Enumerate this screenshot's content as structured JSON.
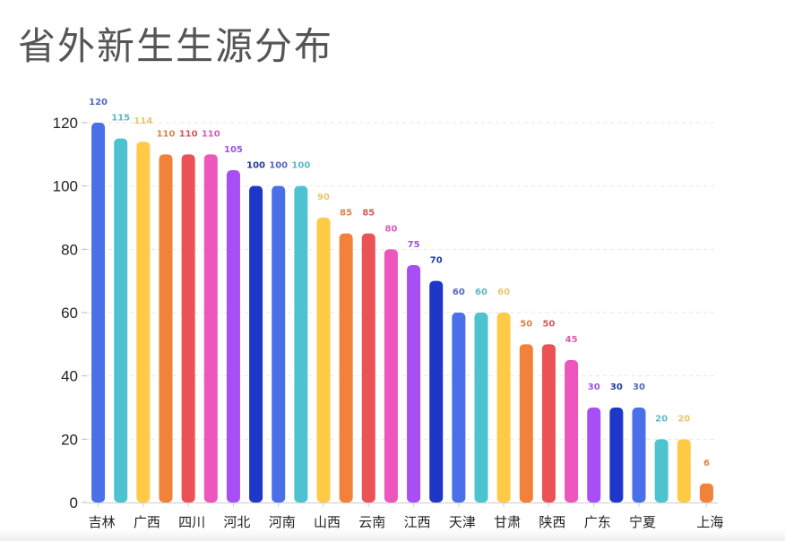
{
  "title": "省外新生生源分布",
  "chart_data": {
    "type": "bar",
    "title": "省外新生生源分布",
    "xlabel": "",
    "ylabel": "",
    "ylim": [
      0,
      120
    ],
    "yticks": [
      0,
      20,
      40,
      60,
      80,
      100,
      120
    ],
    "grid": true,
    "legend": "none",
    "categories": [
      "吉林",
      "",
      "广西",
      "",
      "四川",
      "",
      "河北",
      "",
      "河南",
      "",
      "山西",
      "",
      "云南",
      "",
      "江西",
      "",
      "天津",
      "",
      "甘肃",
      "",
      "陕西",
      "",
      "广东",
      "",
      "宁夏",
      "",
      "",
      "上海"
    ],
    "values": [
      120,
      115,
      114,
      110,
      110,
      110,
      105,
      100,
      100,
      100,
      90,
      85,
      85,
      80,
      75,
      70,
      60,
      60,
      60,
      50,
      50,
      45,
      30,
      30,
      30,
      20,
      20,
      6
    ],
    "bar_colors": [
      "#4B6FE8",
      "#4EC3D0",
      "#FFCB47",
      "#F2813A",
      "#EB5255",
      "#EC56BD",
      "#A84EF5",
      "#1F37C8"
    ],
    "label_colors": [
      "#5366C2",
      "#5CBAC6",
      "#E8C66A",
      "#E0824A",
      "#D9575A",
      "#D95CB4",
      "#9A55E0",
      "#243A9C"
    ]
  }
}
